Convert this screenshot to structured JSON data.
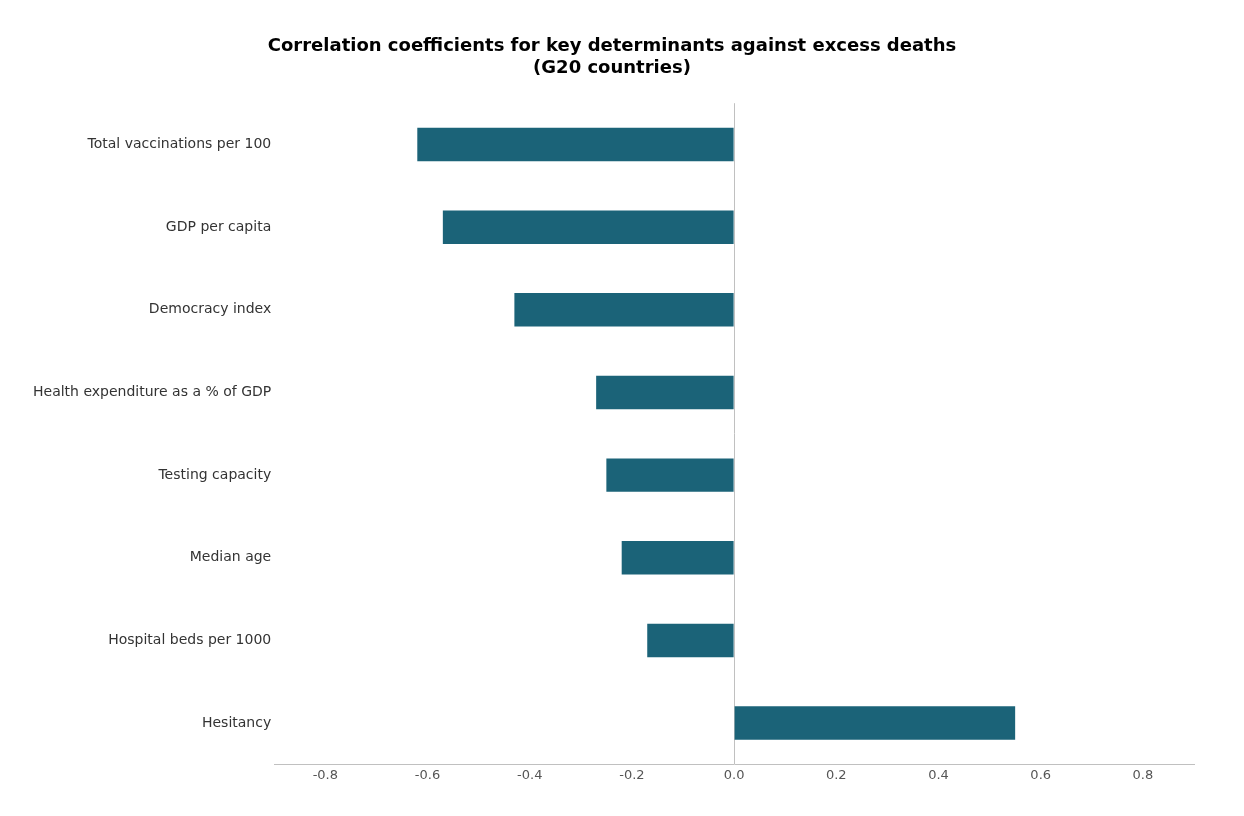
{
  "chart_data": {
    "type": "bar",
    "orientation": "horizontal",
    "title": "Correlation coefficients for key determinants against excess deaths",
    "subtitle": "(G20 countries)",
    "categories": [
      "Total vaccinations per 100",
      "GDP per capita",
      "Democracy index",
      "Health expenditure as a % of GDP",
      "Testing capacity",
      "Median age",
      "Hospital beds per 1000",
      "Hesitancy"
    ],
    "values": [
      -0.62,
      -0.57,
      -0.43,
      -0.27,
      -0.25,
      -0.22,
      -0.17,
      0.55
    ],
    "color": "#1b6378",
    "xlim": [
      -0.9,
      0.9
    ],
    "xticks": [
      {
        "value": -0.8,
        "label": "-0.8"
      },
      {
        "value": -0.6,
        "label": "-0.6"
      },
      {
        "value": -0.4,
        "label": "-0.4"
      },
      {
        "value": -0.2,
        "label": "-0.2"
      },
      {
        "value": 0,
        "label": "0.0"
      },
      {
        "value": 0.2,
        "label": "0.2"
      },
      {
        "value": 0.4,
        "label": "0.4"
      },
      {
        "value": 0.6,
        "label": "0.6"
      },
      {
        "value": 0.8,
        "label": "0.8"
      }
    ],
    "grid": false
  }
}
